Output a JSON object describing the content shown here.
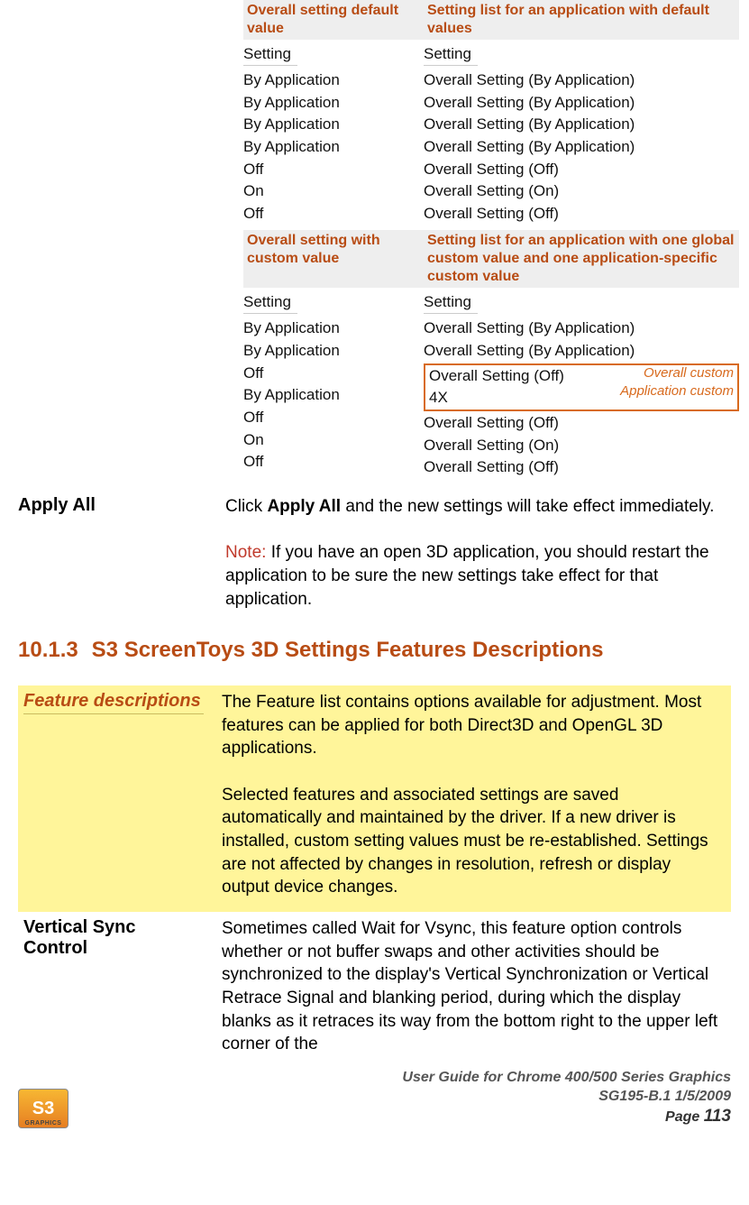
{
  "col_headers": {
    "a_left": "Overall setting default value",
    "a_right": "Setting list for an application with default values",
    "b_left": "Overall setting with custom value",
    "b_right": "Setting list for an application with one global custom value and one application-specific custom value"
  },
  "block_a_left": {
    "title": "Setting",
    "items": [
      "By Application",
      "By Application",
      "By Application",
      "By Application",
      "Off",
      "On",
      "Off"
    ]
  },
  "block_a_right": {
    "title": "Setting",
    "items": [
      "Overall Setting (By Application)",
      "Overall Setting (By Application)",
      "Overall Setting (By Application)",
      "Overall Setting (By Application)",
      "Overall Setting (Off)",
      "Overall Setting (On)",
      "Overall Setting (Off)"
    ]
  },
  "block_b_left": {
    "title": "Setting",
    "items": [
      "By Application",
      "By Application",
      "Off",
      "By Application",
      "Off",
      "On",
      "Off"
    ]
  },
  "block_b_right": {
    "title": "Setting",
    "items_top": [
      "Overall Setting (By Application)",
      "Overall Setting (By Application)"
    ],
    "box_line1": "Overall Setting (Off)",
    "box_line2": "4X",
    "annot1": "Overall custom",
    "annot2": "Application custom",
    "items_bot": [
      "Overall Setting (Off)",
      "Overall Setting (On)",
      "Overall Setting (Off)"
    ]
  },
  "apply": {
    "label": "Apply All",
    "p1_pre": "Click ",
    "p1_bold": "Apply All",
    "p1_post": " and the new settings will take effect immediately.",
    "note_label": "Note:",
    "note_text": " If you have an open 3D application, you should restart the application to be sure the new settings take effect for that application."
  },
  "section": {
    "num": "10.1.3",
    "title": "S3 ScreenToys 3D Settings Features Descriptions"
  },
  "feature": {
    "label": "Feature descriptions",
    "p1": "The Feature list contains options available for adjustment. Most features can be applied for both Direct3D and OpenGL 3D applications.",
    "p2": "Selected features and associated settings are saved automatically and maintained by the driver. If a new driver is installed, custom setting values must be re-established. Settings are not affected by changes in resolution, refresh or display output device changes."
  },
  "vsync": {
    "label": "Vertical Sync Control",
    "p1": "Sometimes called Wait for Vsync, this feature option controls whether or not buffer swaps and other activities should be synchronized to the display's Vertical Synchronization or Vertical Retrace Signal and blanking period, during which the display blanks as it retraces its way from the bottom right to the upper left corner of the"
  },
  "footer": {
    "logo_text": "S3",
    "logo_sub": "GRAPHICS",
    "line1": "User Guide for Chrome 400/500 Series Graphics",
    "line2": "SG195-B.1   1/5/2009",
    "page_label": "Page ",
    "page_num": "113"
  }
}
